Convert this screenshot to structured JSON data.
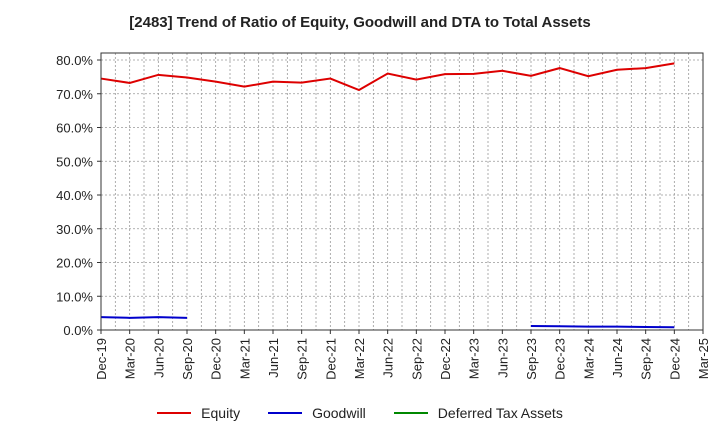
{
  "chart_data": {
    "type": "line",
    "title": "[2483]  Trend of Ratio of Equity, Goodwill and DTA to Total Assets",
    "x": [
      "Dec-19",
      "Mar-20",
      "Jun-20",
      "Sep-20",
      "Dec-20",
      "Mar-21",
      "Jun-21",
      "Sep-21",
      "Dec-21",
      "Mar-22",
      "Jun-22",
      "Sep-22",
      "Dec-22",
      "Mar-23",
      "Jun-23",
      "Sep-23",
      "Dec-23",
      "Mar-24",
      "Jun-24",
      "Sep-24",
      "Dec-24",
      "Mar-25"
    ],
    "ylim": [
      0,
      80
    ],
    "yticks": [
      "0.0%",
      "10.0%",
      "20.0%",
      "30.0%",
      "40.0%",
      "50.0%",
      "60.0%",
      "70.0%",
      "80.0%"
    ],
    "grid": true,
    "legend_position": "bottom",
    "series": [
      {
        "name": "Equity",
        "color": "#dd0000",
        "values": [
          74.5,
          73.2,
          75.6,
          74.8,
          73.6,
          72.1,
          73.6,
          73.3,
          74.5,
          71.1,
          76.0,
          74.2,
          75.8,
          75.9,
          76.8,
          75.3,
          77.6,
          75.2,
          77.1,
          77.6,
          79.0,
          null
        ]
      },
      {
        "name": "Goodwill",
        "color": "#0000cc",
        "values": [
          3.8,
          3.6,
          3.8,
          3.6,
          null,
          null,
          null,
          null,
          null,
          null,
          null,
          null,
          null,
          null,
          null,
          1.2,
          1.1,
          1.0,
          1.0,
          0.9,
          0.8,
          null
        ]
      },
      {
        "name": "Deferred Tax Assets",
        "color": "#008800",
        "values": [
          null,
          null,
          null,
          null,
          null,
          null,
          null,
          null,
          null,
          null,
          null,
          null,
          null,
          null,
          null,
          null,
          null,
          null,
          null,
          null,
          null,
          null
        ]
      }
    ]
  }
}
